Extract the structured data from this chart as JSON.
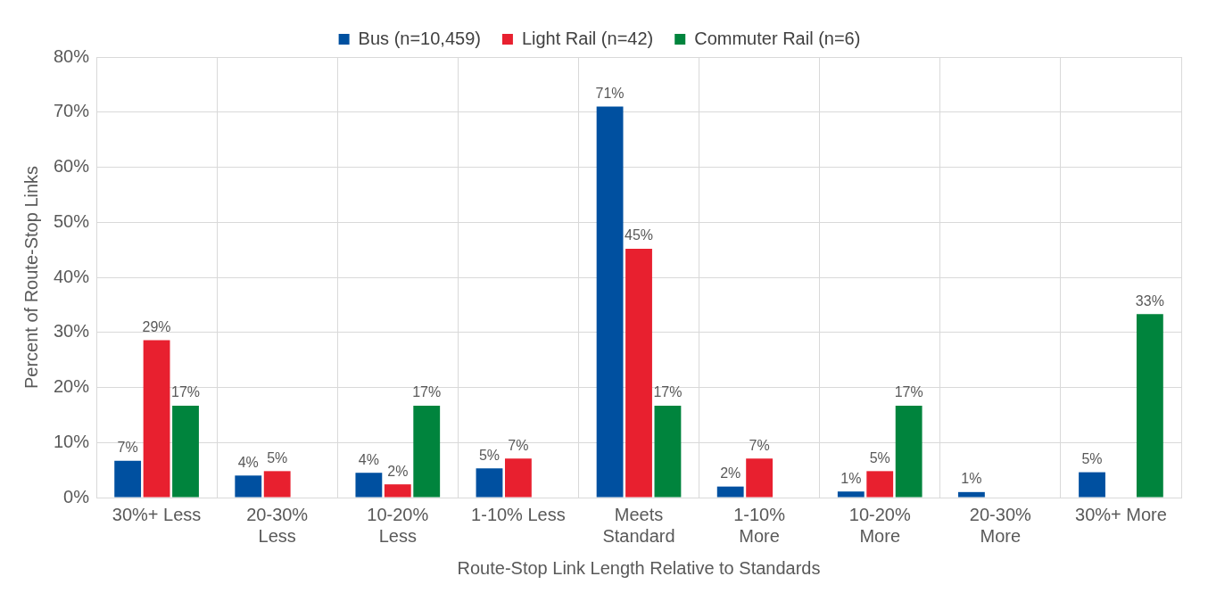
{
  "chart_data": {
    "type": "bar",
    "xlabel": "Route-Stop Link Length Relative to Standards",
    "ylabel": "Percent of Route-Stop Links",
    "categories": [
      "30%+ Less",
      "20-30%\nLess",
      "10-20%\nLess",
      "1-10% Less",
      "Meets\nStandard",
      "1-10%\nMore",
      "10-20%\nMore",
      "20-30%\nMore",
      "30%+ More"
    ],
    "series": [
      {
        "name": "Bus (n=10,459)",
        "color": "#0050a0",
        "values": [
          6.7,
          4.0,
          4.5,
          5.3,
          71.0,
          2.0,
          1.1,
          1.0,
          4.6
        ],
        "value_labels": [
          "7%",
          "4%",
          "4%",
          "5%",
          "71%",
          "2%",
          "1%",
          "1%",
          "5%"
        ]
      },
      {
        "name": "Light Rail (n=42)",
        "color": "#e8202f",
        "values": [
          28.6,
          4.8,
          2.4,
          7.1,
          45.2,
          7.1,
          4.8,
          null,
          null
        ],
        "value_labels": [
          "29%",
          "5%",
          "2%",
          "7%",
          "45%",
          "7%",
          "5%",
          null,
          null
        ]
      },
      {
        "name": "Commuter Rail (n=6)",
        "color": "#00843d",
        "values": [
          16.7,
          null,
          16.7,
          null,
          16.7,
          null,
          16.7,
          null,
          33.3
        ],
        "value_labels": [
          "17%",
          null,
          "17%",
          null,
          "17%",
          null,
          "17%",
          null,
          "33%"
        ]
      }
    ],
    "ylim": [
      0,
      80
    ],
    "yticks": [
      {
        "value": 0,
        "label": "0%"
      },
      {
        "value": 10,
        "label": "10%"
      },
      {
        "value": 20,
        "label": "20%"
      },
      {
        "value": 30,
        "label": "30%"
      },
      {
        "value": 40,
        "label": "40%"
      },
      {
        "value": 50,
        "label": "50%"
      },
      {
        "value": 60,
        "label": "60%"
      },
      {
        "value": 70,
        "label": "70%"
      },
      {
        "value": 80,
        "label": "80%"
      }
    ],
    "grid": true,
    "legend": "top"
  }
}
